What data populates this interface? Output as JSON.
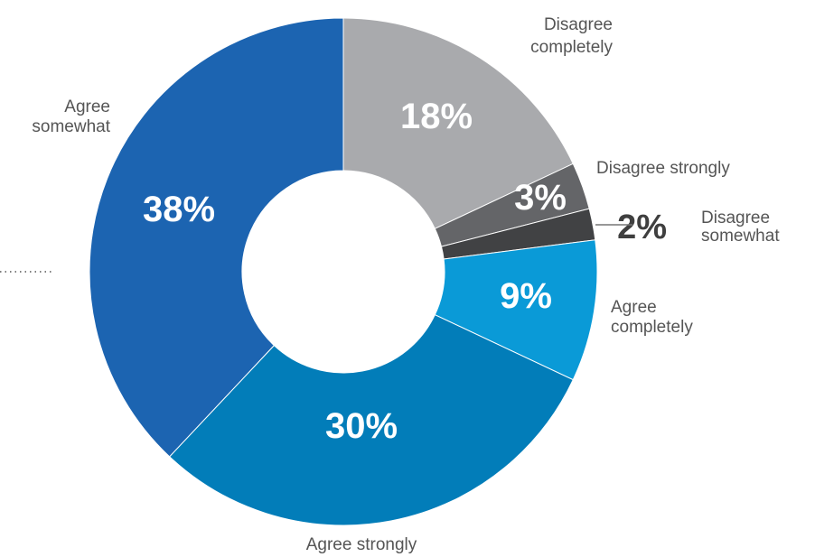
{
  "chart_data": {
    "type": "pie",
    "donut": true,
    "title": "",
    "legend": "none",
    "categories": [
      "Disagree completely",
      "Disagree strongly",
      "Disagree somewhat",
      "Agree completely",
      "Agree strongly",
      "Agree somewhat"
    ],
    "values": [
      18,
      3,
      2,
      9,
      30,
      38
    ],
    "unit": "%",
    "slices": [
      {
        "category": "Disagree completely",
        "category_lines": [
          "Disagree",
          "completely"
        ],
        "value": 18,
        "value_label": "18%",
        "color": "#a9aaad"
      },
      {
        "category": "Disagree strongly",
        "category_lines": [
          "Disagree strongly"
        ],
        "value": 3,
        "value_label": "3%",
        "color": "#646568"
      },
      {
        "category": "Disagree somewhat",
        "category_lines": [
          "Disagree",
          "somewhat"
        ],
        "value": 2,
        "value_label": "2%",
        "color": "#414244"
      },
      {
        "category": "Agree completely",
        "category_lines": [
          "Agree",
          "completely"
        ],
        "value": 9,
        "value_label": "9%",
        "color": "#0a9ad7"
      },
      {
        "category": "Agree strongly",
        "category_lines": [
          "Agree strongly"
        ],
        "value": 30,
        "value_label": "30%",
        "color": "#027db9"
      },
      {
        "category": "Agree somewhat",
        "category_lines": [
          "Agree",
          "somewhat"
        ],
        "value": 38,
        "value_label": "38%",
        "color": "#1c64b1"
      }
    ]
  }
}
